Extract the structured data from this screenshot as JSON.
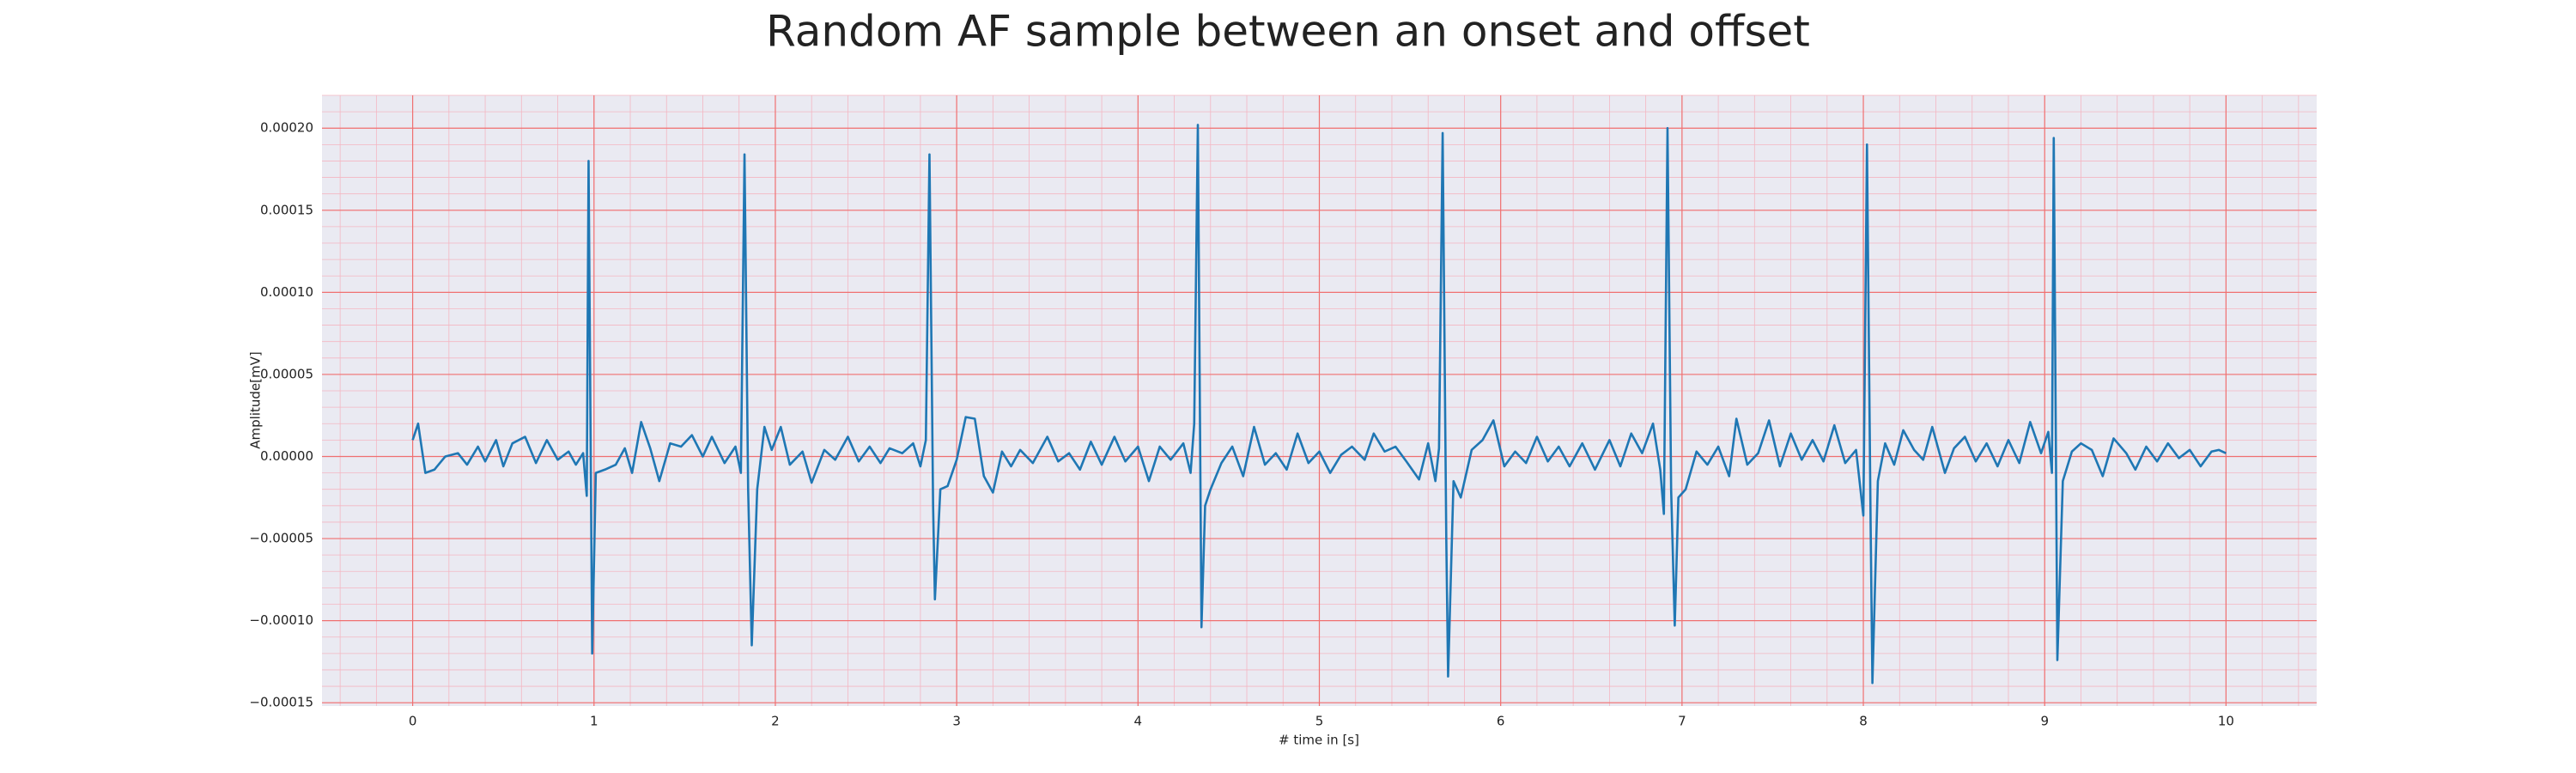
{
  "chart_data": {
    "type": "line",
    "title": "Random AF sample between an onset and offset",
    "x_label": "# time in [s]",
    "y_label": "Amplitude[mV]",
    "color": "#1f77b4",
    "grid": true,
    "minor_grid": true,
    "xlim": [
      -0.5,
      10.5
    ],
    "ylim": [
      -0.000152,
      0.00022
    ],
    "xticks": [
      0,
      1,
      2,
      3,
      4,
      5,
      6,
      7,
      8,
      9,
      10
    ],
    "yticks": [
      {
        "value": -0.00015,
        "label": "−0.00015"
      },
      {
        "value": -0.0001,
        "label": "−0.00010"
      },
      {
        "value": -5e-05,
        "label": "−0.00005"
      },
      {
        "value": 0,
        "label": "0.00000"
      },
      {
        "value": 5e-05,
        "label": "0.00005"
      },
      {
        "value": 0.0001,
        "label": "0.00010"
      },
      {
        "value": 0.00015,
        "label": "0.00015"
      },
      {
        "value": 0.0002,
        "label": "0.00020"
      }
    ],
    "x": [
      0,
      0.03,
      0.07,
      0.12,
      0.18,
      0.25,
      0.3,
      0.36,
      0.4,
      0.46,
      0.5,
      0.55,
      0.62,
      0.68,
      0.74,
      0.8,
      0.86,
      0.9,
      0.94,
      0.96,
      0.97,
      0.99,
      1.01,
      1.06,
      1.12,
      1.17,
      1.21,
      1.26,
      1.31,
      1.36,
      1.42,
      1.48,
      1.54,
      1.6,
      1.65,
      1.72,
      1.78,
      1.81,
      1.83,
      1.85,
      1.87,
      1.9,
      1.94,
      1.98,
      2.03,
      2.08,
      2.15,
      2.2,
      2.27,
      2.33,
      2.4,
      2.46,
      2.52,
      2.58,
      2.63,
      2.7,
      2.76,
      2.8,
      2.83,
      2.85,
      2.87,
      2.88,
      2.91,
      2.95,
      3.0,
      3.05,
      3.1,
      3.15,
      3.2,
      3.25,
      3.3,
      3.35,
      3.42,
      3.5,
      3.56,
      3.62,
      3.68,
      3.74,
      3.8,
      3.87,
      3.93,
      4.0,
      4.06,
      4.12,
      4.18,
      4.25,
      4.29,
      4.31,
      4.33,
      4.35,
      4.37,
      4.4,
      4.46,
      4.52,
      4.58,
      4.64,
      4.7,
      4.76,
      4.82,
      4.88,
      4.94,
      5.0,
      5.06,
      5.12,
      5.18,
      5.25,
      5.3,
      5.36,
      5.42,
      5.48,
      5.55,
      5.6,
      5.64,
      5.66,
      5.68,
      5.7,
      5.71,
      5.74,
      5.78,
      5.84,
      5.9,
      5.96,
      6.02,
      6.08,
      6.14,
      6.2,
      6.26,
      6.32,
      6.38,
      6.45,
      6.52,
      6.6,
      6.66,
      6.72,
      6.78,
      6.84,
      6.88,
      6.9,
      6.92,
      6.94,
      6.96,
      6.98,
      7.02,
      7.08,
      7.14,
      7.2,
      7.26,
      7.3,
      7.36,
      7.42,
      7.48,
      7.54,
      7.6,
      7.66,
      7.72,
      7.78,
      7.84,
      7.9,
      7.96,
      8.0,
      8.02,
      8.04,
      8.05,
      8.08,
      8.12,
      8.17,
      8.22,
      8.28,
      8.33,
      8.38,
      8.45,
      8.5,
      8.56,
      8.62,
      8.68,
      8.74,
      8.8,
      8.86,
      8.92,
      8.98,
      9.02,
      9.04,
      9.05,
      9.07,
      9.1,
      9.15,
      9.2,
      9.26,
      9.32,
      9.38,
      9.45,
      9.5,
      9.56,
      9.62,
      9.68,
      9.74,
      9.8,
      9.86,
      9.92,
      9.96,
      10.0
    ],
    "values": [
      1e-05,
      2e-05,
      -1e-05,
      -8e-06,
      0.0,
      2e-06,
      -5e-06,
      6e-06,
      -3e-06,
      1e-05,
      -6e-06,
      8e-06,
      1.2e-05,
      -4e-06,
      1e-05,
      -2e-06,
      3e-06,
      -5e-06,
      2e-06,
      -2.4e-05,
      0.00018,
      -0.00012,
      -1e-05,
      -8e-06,
      -5e-06,
      5e-06,
      -1e-05,
      2.1e-05,
      5e-06,
      -1.5e-05,
      8e-06,
      6e-06,
      1.3e-05,
      0.0,
      1.2e-05,
      -4e-06,
      6e-06,
      -1e-05,
      0.000184,
      -2e-05,
      -0.000115,
      -2e-05,
      1.8e-05,
      4e-06,
      1.8e-05,
      -5e-06,
      3e-06,
      -1.6e-05,
      4e-06,
      -2e-06,
      1.2e-05,
      -3e-06,
      6e-06,
      -4e-06,
      5e-06,
      2e-06,
      8e-06,
      -6e-06,
      1e-05,
      0.000184,
      -3e-05,
      -8.7e-05,
      -2e-05,
      -1.8e-05,
      -2e-06,
      2.4e-05,
      2.3e-05,
      -1.2e-05,
      -2.2e-05,
      3e-06,
      -6e-06,
      4e-06,
      -4e-06,
      1.2e-05,
      -3e-06,
      2e-06,
      -8e-06,
      9e-06,
      -5e-06,
      1.2e-05,
      -3e-06,
      6e-06,
      -1.5e-05,
      6e-06,
      -2e-06,
      8e-06,
      -1e-05,
      2e-05,
      0.000202,
      -0.000104,
      -3e-05,
      -2e-05,
      -4e-06,
      6e-06,
      -1.2e-05,
      1.8e-05,
      -5e-06,
      2e-06,
      -8e-06,
      1.4e-05,
      -4e-06,
      3e-06,
      -1e-05,
      1e-06,
      6e-06,
      -2e-06,
      1.4e-05,
      3e-06,
      6e-06,
      -3e-06,
      -1.4e-05,
      8e-06,
      -1.5e-05,
      5e-06,
      0.000197,
      -5e-05,
      -0.000134,
      -1.5e-05,
      -2.5e-05,
      4e-06,
      1e-05,
      2.2e-05,
      -6e-06,
      3e-06,
      -4e-06,
      1.2e-05,
      -3e-06,
      6e-06,
      -6e-06,
      8e-06,
      -8e-06,
      1e-05,
      -6e-06,
      1.4e-05,
      2e-06,
      2e-05,
      -8e-06,
      -3.5e-05,
      0.0002,
      -2e-05,
      -0.000103,
      -2.5e-05,
      -2e-05,
      3e-06,
      -5e-06,
      6e-06,
      -1.2e-05,
      2.3e-05,
      -5e-06,
      2e-06,
      2.2e-05,
      -6e-06,
      1.4e-05,
      -2e-06,
      1e-05,
      -3e-06,
      1.9e-05,
      -4e-06,
      4e-06,
      -3.6e-05,
      0.00019,
      -4e-05,
      -0.000138,
      -1.5e-05,
      8e-06,
      -5e-06,
      1.6e-05,
      4e-06,
      -2e-06,
      1.8e-05,
      -1e-05,
      5e-06,
      1.2e-05,
      -3e-06,
      8e-06,
      -6e-06,
      1e-05,
      -4e-06,
      2.1e-05,
      2e-06,
      1.5e-05,
      -1e-05,
      0.000194,
      -0.000124,
      -1.5e-05,
      3e-06,
      8e-06,
      4e-06,
      -1.2e-05,
      1.1e-05,
      2e-06,
      -8e-06,
      6e-06,
      -3e-06,
      8e-06,
      -1e-06,
      4e-06,
      -6e-06,
      3e-06,
      4e-06,
      2e-06
    ]
  }
}
